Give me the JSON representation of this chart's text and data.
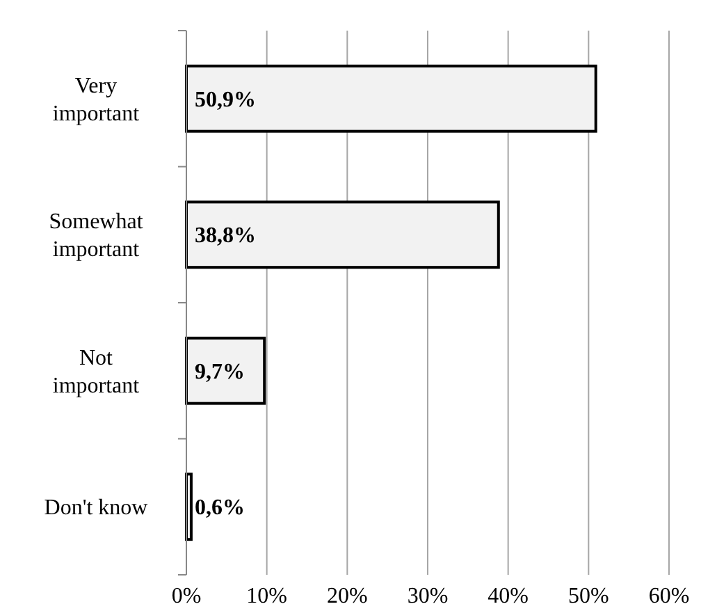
{
  "chart_data": {
    "type": "bar",
    "orientation": "horizontal",
    "categories": [
      "Very important",
      "Somewhat important",
      "Not important",
      "Don't know"
    ],
    "values": [
      50.9,
      38.8,
      9.7,
      0.6
    ],
    "value_labels": [
      "50,9%",
      "38,8%",
      "9,7%",
      "0,6%"
    ],
    "color": "#f2f2f2",
    "xlim": [
      0,
      60
    ],
    "xticks": [
      {
        "value": 0,
        "label": "0%"
      },
      {
        "value": 10,
        "label": "10%"
      },
      {
        "value": 20,
        "label": "20%"
      },
      {
        "value": 30,
        "label": "30%"
      },
      {
        "value": 40,
        "label": "40%"
      },
      {
        "value": 50,
        "label": "50%"
      },
      {
        "value": 60,
        "label": "60%"
      }
    ],
    "grid": "x"
  }
}
